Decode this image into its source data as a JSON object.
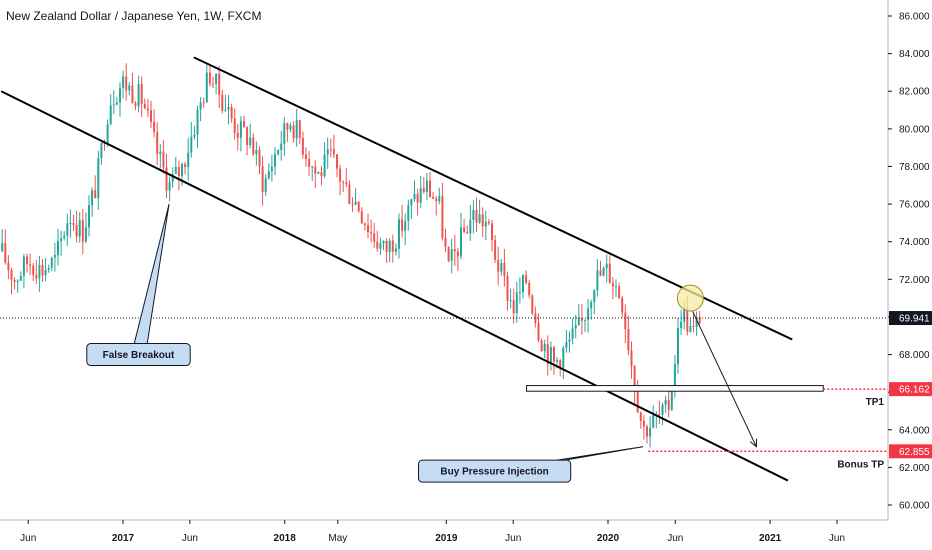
{
  "chart_data": {
    "type": "candlestick",
    "title": "New Zealand Dollar / Japanese Yen, 1W, FXCM",
    "ylim": [
      59.0,
      87.0
    ],
    "y_ticks": [
      60.0,
      62.0,
      64.0,
      66.0,
      68.0,
      70.0,
      72.0,
      74.0,
      76.0,
      78.0,
      80.0,
      82.0,
      84.0,
      86.0
    ],
    "y_tick_labels": [
      "60.000",
      "62.000",
      "64.000",
      "66.000",
      "68.000",
      "70.000",
      "72.000",
      "74.000",
      "76.000",
      "78.000",
      "80.000",
      "82.000",
      "84.000",
      "86.000"
    ],
    "x_range": [
      "2016-04-01",
      "2021-08-15"
    ],
    "x_ticks": [
      {
        "date": "2016-06-01",
        "label": "Jun",
        "major": false
      },
      {
        "date": "2017-01-01",
        "label": "2017",
        "major": true
      },
      {
        "date": "2017-06-01",
        "label": "Jun",
        "major": false
      },
      {
        "date": "2018-01-01",
        "label": "2018",
        "major": true
      },
      {
        "date": "2018-05-01",
        "label": "May",
        "major": false
      },
      {
        "date": "2019-01-01",
        "label": "2019",
        "major": true
      },
      {
        "date": "2019-06-01",
        "label": "Jun",
        "major": false
      },
      {
        "date": "2020-01-01",
        "label": "2020",
        "major": true
      },
      {
        "date": "2020-06-01",
        "label": "Jun",
        "major": false
      },
      {
        "date": "2021-01-01",
        "label": "2021",
        "major": true
      },
      {
        "date": "2021-06-01",
        "label": "Jun",
        "major": false
      }
    ],
    "price_path": [
      [
        "2016-04-01",
        73.5
      ],
      [
        "2016-05-01",
        72.0
      ],
      [
        "2016-06-01",
        73.0
      ],
      [
        "2016-07-01",
        72.5
      ],
      [
        "2016-08-01",
        73.0
      ],
      [
        "2016-09-01",
        75.5
      ],
      [
        "2016-10-01",
        74.5
      ],
      [
        "2016-11-01",
        77.0
      ],
      [
        "2016-12-01",
        81.5
      ],
      [
        "2017-01-01",
        82.5
      ],
      [
        "2017-02-15",
        81.5
      ],
      [
        "2017-03-15",
        79.0
      ],
      [
        "2017-04-15",
        77.0
      ],
      [
        "2017-05-15",
        78.0
      ],
      [
        "2017-06-15",
        80.5
      ],
      [
        "2017-07-15",
        83.0
      ],
      [
        "2017-08-15",
        81.5
      ],
      [
        "2017-09-15",
        80.0
      ],
      [
        "2017-10-15",
        79.5
      ],
      [
        "2017-11-15",
        77.0
      ],
      [
        "2017-12-15",
        79.0
      ],
      [
        "2018-01-15",
        80.5
      ],
      [
        "2018-02-15",
        79.0
      ],
      [
        "2018-03-15",
        77.5
      ],
      [
        "2018-04-15",
        78.5
      ],
      [
        "2018-05-15",
        77.0
      ],
      [
        "2018-06-15",
        76.0
      ],
      [
        "2018-07-15",
        74.5
      ],
      [
        "2018-08-15",
        73.5
      ],
      [
        "2018-09-15",
        74.5
      ],
      [
        "2018-10-15",
        76.0
      ],
      [
        "2018-11-15",
        77.0
      ],
      [
        "2018-12-15",
        76.0
      ],
      [
        "2019-01-05",
        72.5
      ],
      [
        "2019-02-01",
        74.0
      ],
      [
        "2019-03-01",
        75.5
      ],
      [
        "2019-04-01",
        75.0
      ],
      [
        "2019-05-01",
        72.5
      ],
      [
        "2019-06-01",
        70.5
      ],
      [
        "2019-07-01",
        72.0
      ],
      [
        "2019-08-01",
        69.0
      ],
      [
        "2019-09-01",
        67.5
      ],
      [
        "2019-10-01",
        68.5
      ],
      [
        "2019-11-01",
        69.5
      ],
      [
        "2019-12-01",
        72.0
      ],
      [
        "2020-01-01",
        72.5
      ],
      [
        "2020-02-01",
        71.0
      ],
      [
        "2020-03-01",
        66.5
      ],
      [
        "2020-03-20",
        64.0
      ],
      [
        "2020-04-15",
        64.5
      ],
      [
        "2020-05-15",
        65.0
      ],
      [
        "2020-06-15",
        70.5
      ],
      [
        "2020-07-10",
        69.0
      ],
      [
        "2020-08-01",
        70.5
      ]
    ],
    "channel_upper": {
      "x1": "2017-06-10",
      "y1": 83.8,
      "x2": "2021-02-20",
      "y2": 68.8
    },
    "channel_lower": {
      "x1": "2016-04-01",
      "y1": 82.0,
      "x2": "2021-02-10",
      "y2": 61.3
    },
    "support_zone": {
      "x1": "2019-07-01",
      "x2": "2021-05-01",
      "y_top": 66.35,
      "y_bottom": 66.05
    },
    "forecast_arrow": {
      "x1": "2020-07-10",
      "y1": 70.3,
      "x2": "2020-12-01",
      "y2": 63.1
    },
    "highlight_circle": {
      "x": "2020-07-05",
      "y": 71.0
    },
    "current_price": {
      "value": 69.941,
      "label": "69.941",
      "color": "#131722"
    },
    "levels": [
      {
        "name": "TP1",
        "value": 66.162,
        "label": "66.162",
        "color": "#f23645",
        "from": "2021-05-01"
      },
      {
        "name": "Bonus TP",
        "value": 62.855,
        "label": "62.855",
        "color": "#f23645",
        "from": "2020-04-01"
      }
    ],
    "annotations": [
      {
        "text": "False Breakout",
        "box_center": [
          "2017-02-05",
          68.0
        ],
        "pointer": [
          "2017-04-15",
          76.0
        ]
      },
      {
        "text": "Buy Pressure Injection",
        "box_center": [
          "2019-04-20",
          61.8
        ],
        "pointer": [
          "2020-03-20",
          63.1
        ]
      }
    ],
    "colors": {
      "up": "#26a69a",
      "down": "#ef5350",
      "line": "#000000",
      "label_bg": "#c6dcf5",
      "label_border": "#131722",
      "circle": "#f7e9a0",
      "grid_axis": "#b2b5be"
    }
  }
}
